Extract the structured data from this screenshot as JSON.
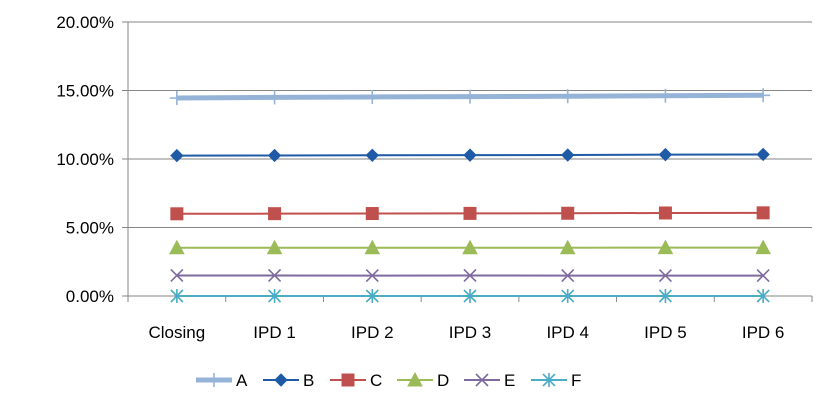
{
  "chart_data": {
    "type": "line",
    "title": "",
    "xlabel": "",
    "ylabel": "",
    "categories": [
      "Closing",
      "IPD 1",
      "IPD 2",
      "IPD 3",
      "IPD 4",
      "IPD 5",
      "IPD 6"
    ],
    "ylim": [
      0,
      0.2
    ],
    "yticks": [
      {
        "value": 0.2,
        "label": "20.00%"
      },
      {
        "value": 0.15,
        "label": "15.00%"
      },
      {
        "value": 0.1,
        "label": "10.00%"
      },
      {
        "value": 0.05,
        "label": "5.00%"
      },
      {
        "value": 0.0,
        "label": "0.00%"
      }
    ],
    "grid": true,
    "legend_position": "bottom",
    "series": [
      {
        "name": "A",
        "color": "#95B3D7",
        "marker": "plus",
        "values": [
          0.1445,
          0.145,
          0.1453,
          0.1455,
          0.1458,
          0.1462,
          0.1465
        ]
      },
      {
        "name": "B",
        "color": "#1F5AA6",
        "marker": "diamond",
        "values": [
          0.1025,
          0.1026,
          0.1027,
          0.1028,
          0.1029,
          0.1032,
          0.1033
        ]
      },
      {
        "name": "C",
        "color": "#C0504D",
        "marker": "square",
        "values": [
          0.06,
          0.0601,
          0.0602,
          0.0603,
          0.0604,
          0.0606,
          0.0607
        ]
      },
      {
        "name": "D",
        "color": "#9BBB59",
        "marker": "triangle",
        "values": [
          0.0352,
          0.0352,
          0.0352,
          0.0352,
          0.0352,
          0.0353,
          0.0353
        ]
      },
      {
        "name": "E",
        "color": "#7F6A9F",
        "marker": "x",
        "values": [
          0.015,
          0.015,
          0.0149,
          0.015,
          0.0149,
          0.0149,
          0.0149
        ]
      },
      {
        "name": "F",
        "color": "#4BACC6",
        "marker": "star",
        "values": [
          0.0,
          0.0,
          0.0,
          0.0,
          0.0,
          0.0,
          0.0
        ]
      }
    ]
  }
}
